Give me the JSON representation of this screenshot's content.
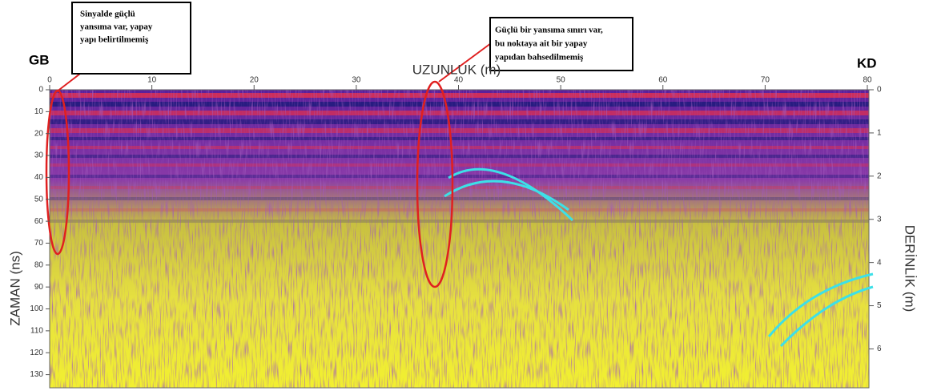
{
  "labels": {
    "left_top": "GB",
    "right_top": "KD",
    "x_axis": "UZUNLUK (m)",
    "y_axis_left": "ZAMAN (ns)",
    "y_axis_right": "DERİNLİK (m)"
  },
  "annotations": [
    {
      "lines": [
        "Sinyalde güçlü",
        "yansıma var, yapay",
        "yapı belirtilmemiş"
      ]
    },
    {
      "lines": [
        "Güçlü bir yansıma sınırı var,",
        "bu noktaya ait bir yapay",
        "yapıdan bahsedilmemiş"
      ]
    }
  ],
  "axes": {
    "x": {
      "lim": [
        0,
        80
      ],
      "ticks": [
        0,
        10,
        20,
        30,
        40,
        50,
        60,
        70,
        80
      ]
    },
    "y_left": {
      "lim": [
        0,
        136
      ],
      "ticks": [
        0,
        10,
        20,
        30,
        40,
        50,
        60,
        70,
        80,
        90,
        100,
        110,
        120,
        130
      ]
    },
    "y_right": {
      "lim": [
        0,
        6.9
      ],
      "ticks": [
        0,
        1,
        2,
        3,
        4,
        5,
        6
      ]
    }
  }
}
